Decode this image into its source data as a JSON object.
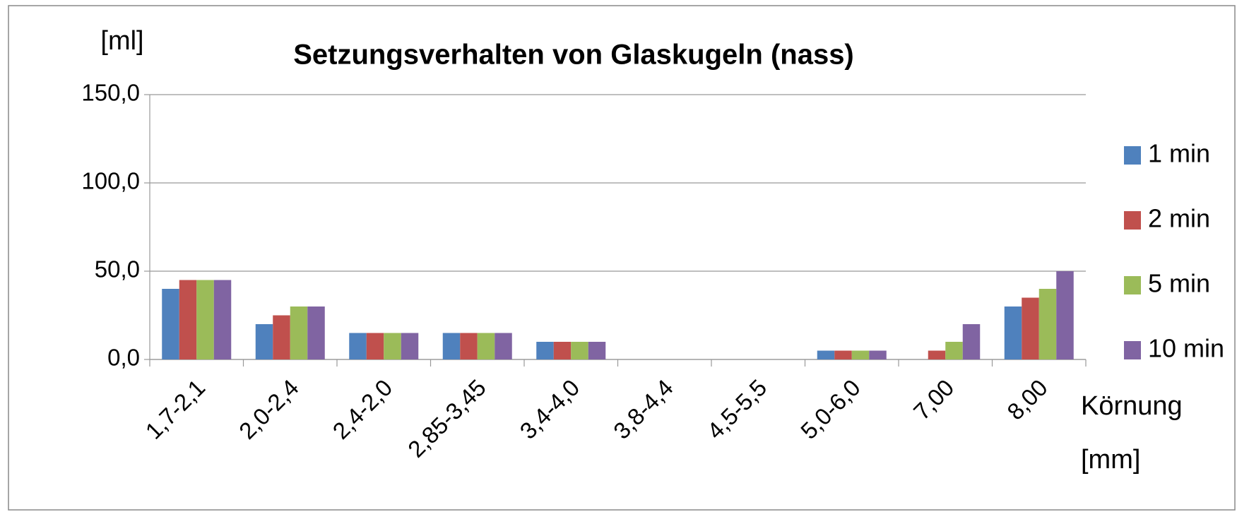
{
  "chart_data": {
    "type": "bar",
    "title": "Setzungsverhalten von Glaskugeln (nass)",
    "y_label": "[ml]",
    "x_label": [
      "Körnung",
      "[mm]"
    ],
    "categories": [
      "1,7-2,1",
      "2,0-2,4",
      "2,4-2,0",
      "2,85-3,45",
      "3,4-4,0",
      "3,8-4,4",
      "4,5-5,5",
      "5,0-6,0",
      "7,00",
      "8,00"
    ],
    "series": [
      {
        "name": "1 min",
        "color": "#4f81bd",
        "values": [
          40,
          20,
          15,
          15,
          10,
          0,
          0,
          5,
          0,
          30
        ]
      },
      {
        "name": "2 min",
        "color": "#c0504d",
        "values": [
          45,
          25,
          15,
          15,
          10,
          0,
          0,
          5,
          5,
          35
        ]
      },
      {
        "name": "5 min",
        "color": "#9bbb59",
        "values": [
          45,
          30,
          15,
          15,
          10,
          0,
          0,
          5,
          10,
          40
        ]
      },
      {
        "name": "10 min",
        "color": "#8064a2",
        "values": [
          45,
          30,
          15,
          15,
          10,
          0,
          0,
          5,
          20,
          50
        ]
      }
    ],
    "ylim": [
      0,
      150
    ],
    "yticks": [
      {
        "value": 0,
        "label": "0,0"
      },
      {
        "value": 50,
        "label": "50,0"
      },
      {
        "value": 100,
        "label": "100,0"
      },
      {
        "value": 150,
        "label": "150,0"
      }
    ],
    "grid": true,
    "legend": "right"
  }
}
